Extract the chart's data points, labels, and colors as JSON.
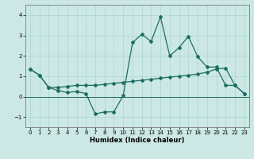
{
  "xlabel": "Humidex (Indice chaleur)",
  "background_color": "#cce8e4",
  "grid_color": "#aad4cf",
  "line_color": "#1a6e62",
  "xlim": [
    -0.5,
    23.5
  ],
  "ylim": [
    -1.5,
    4.5
  ],
  "xticks": [
    0,
    1,
    2,
    3,
    4,
    5,
    6,
    7,
    8,
    9,
    10,
    11,
    12,
    13,
    14,
    15,
    16,
    17,
    18,
    19,
    20,
    21,
    22,
    23
  ],
  "yticks": [
    -1,
    0,
    1,
    2,
    3,
    4
  ],
  "series_jagged_x": [
    0,
    1,
    2,
    3,
    4,
    5,
    6,
    7,
    8,
    9,
    10,
    11,
    12,
    13,
    14,
    15,
    16,
    17,
    18,
    19,
    20,
    21,
    22,
    23
  ],
  "series_jagged_y": [
    1.35,
    1.05,
    0.45,
    0.3,
    0.2,
    0.25,
    0.15,
    -0.85,
    -0.75,
    -0.75,
    0.05,
    2.65,
    3.05,
    2.7,
    3.9,
    2.0,
    2.4,
    2.95,
    1.95,
    1.45,
    1.45,
    0.55,
    0.55,
    0.15
  ],
  "series_trend_x": [
    0,
    1,
    2,
    3,
    4,
    5,
    6,
    7,
    8,
    9,
    10,
    11,
    12,
    13,
    14,
    15,
    16,
    17,
    18,
    19,
    20,
    21,
    22,
    23
  ],
  "series_trend_y": [
    1.35,
    1.05,
    0.45,
    0.45,
    0.5,
    0.55,
    0.55,
    0.55,
    0.6,
    0.65,
    0.7,
    0.75,
    0.8,
    0.85,
    0.9,
    0.95,
    1.0,
    1.05,
    1.1,
    1.2,
    1.35,
    1.4,
    0.55,
    0.15
  ]
}
